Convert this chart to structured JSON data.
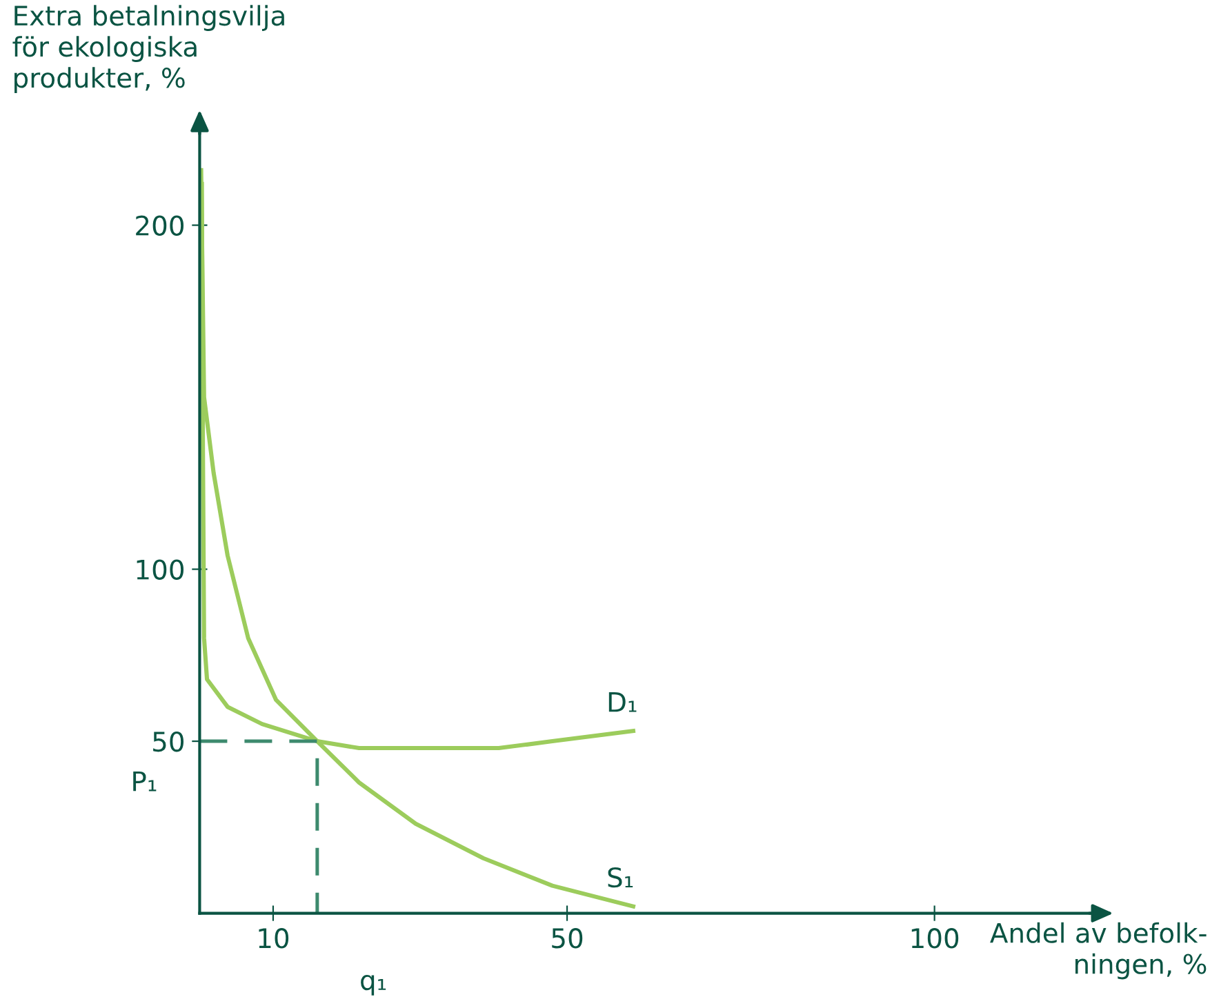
{
  "chart_data": {
    "type": "line",
    "ylabel": "Extra betalningsvilja\nför ekologiska\nprodukter, %",
    "xlabel": "Andel av befolk-\nningen, %",
    "xlim": [
      0,
      123
    ],
    "ylim": [
      0,
      230
    ],
    "xticks": [
      10,
      50,
      100
    ],
    "yticks": [
      50,
      100,
      200
    ],
    "grid": false,
    "legend": false,
    "marker": "none",
    "series": [
      {
        "name": "D₁",
        "color": "#9ccc5c",
        "line_style": "solid",
        "x": [
          0.3,
          0.4,
          0.6,
          1,
          3.8,
          8.5,
          16,
          21.7,
          33,
          40.7,
          48,
          59
        ],
        "values": [
          212,
          150,
          80,
          68,
          60,
          55,
          50,
          48,
          48,
          48,
          50,
          53
        ]
      },
      {
        "name": "S₁",
        "color": "#9ccc5c",
        "line_style": "solid",
        "x": [
          0.2,
          0.6,
          1.9,
          3.8,
          6.6,
          10.4,
          16,
          21.7,
          29.4,
          38.6,
          48,
          59
        ],
        "values": [
          216,
          150,
          128,
          104,
          80,
          62,
          50,
          38,
          26,
          16,
          8,
          2
        ]
      },
      {
        "color": "#3d8a6e",
        "line_style": "dashed",
        "x": [
          0,
          16,
          16
        ],
        "values": [
          50,
          50,
          0
        ]
      }
    ],
    "annotations": [
      {
        "text": "P₁",
        "x": 0,
        "y": 50
      },
      {
        "text": "q₁",
        "x": 16,
        "y": 0
      }
    ]
  }
}
